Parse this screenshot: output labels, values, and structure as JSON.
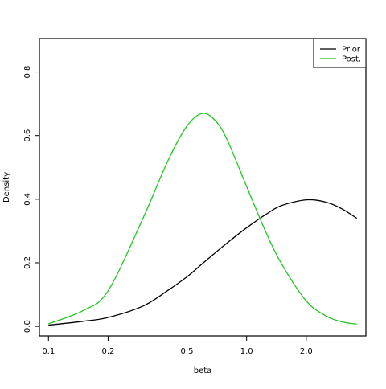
{
  "chart_data": {
    "type": "line",
    "xlabel": "beta",
    "ylabel": "Density",
    "x_scale": "log",
    "xlim": [
      0.1,
      3.6
    ],
    "ylim": [
      0.0,
      0.9
    ],
    "x_ticks": [
      0.1,
      0.2,
      0.5,
      1.0,
      2.0
    ],
    "x_tick_labels": [
      "0.1",
      "0.2",
      "0.5",
      "1.0",
      "2.0"
    ],
    "y_ticks": [
      0.0,
      0.2,
      0.4,
      0.6,
      0.8
    ],
    "y_tick_labels": [
      "0.0",
      "0.2",
      "0.4",
      "0.6",
      "0.8"
    ],
    "grid": false,
    "legend_position": "top-right",
    "series": [
      {
        "name": "Prior",
        "color": "#000000",
        "x": [
          0.1,
          0.15,
          0.2,
          0.3,
          0.4,
          0.5,
          0.6,
          0.8,
          1.0,
          1.25,
          1.5,
          2.0,
          2.5,
          3.0,
          3.6
        ],
        "y": [
          0.004,
          0.016,
          0.028,
          0.064,
          0.113,
          0.156,
          0.198,
          0.263,
          0.31,
          0.352,
          0.38,
          0.398,
          0.391,
          0.371,
          0.34
        ]
      },
      {
        "name": "Post.",
        "color": "#22c522",
        "x": [
          0.1,
          0.15,
          0.2,
          0.3,
          0.4,
          0.5,
          0.6,
          0.7,
          0.8,
          1.0,
          1.25,
          1.5,
          2.0,
          2.5,
          3.0,
          3.6
        ],
        "y": [
          0.008,
          0.05,
          0.112,
          0.34,
          0.52,
          0.63,
          0.67,
          0.645,
          0.585,
          0.44,
          0.297,
          0.197,
          0.08,
          0.034,
          0.015,
          0.007
        ]
      }
    ]
  }
}
